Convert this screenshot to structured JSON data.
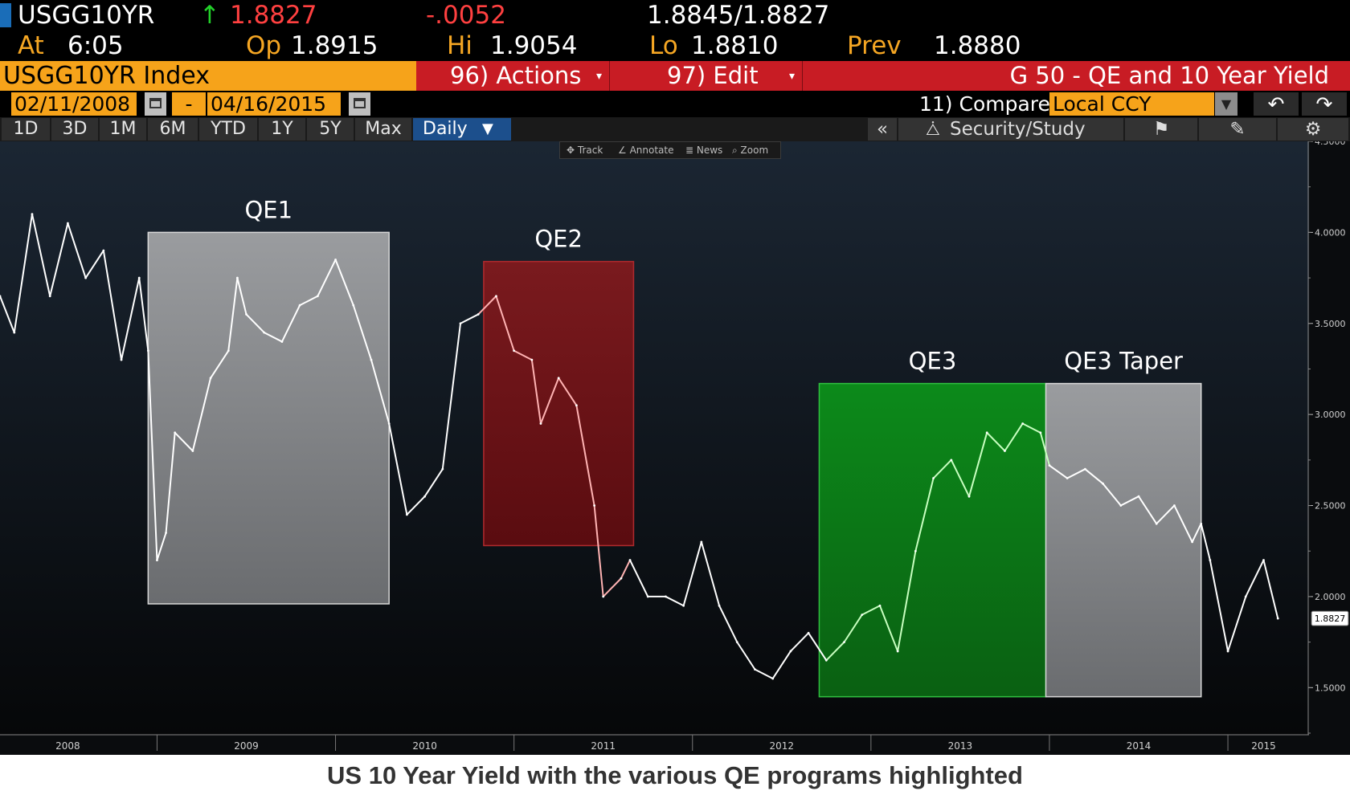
{
  "quote": {
    "ticker": "USGG10YR",
    "last": "1.8827",
    "change": "-.0052",
    "bid_ask": "1.8845/1.8827",
    "at_label": "At",
    "time": "6:05",
    "open_label": "Op",
    "open": "1.8915",
    "high_label": "Hi",
    "high": "1.9054",
    "low_label": "Lo",
    "low": "1.8810",
    "prev_label": "Prev",
    "prev": "1.8880"
  },
  "toolbar": {
    "index": "USGG10YR Index",
    "actions": "96) Actions",
    "edit": "97) Edit",
    "title": "G 50 - QE and 10 Year Yield",
    "start_date": "02/11/2008",
    "dash": "-",
    "end_date": "04/16/2015",
    "compare": "11) Compare",
    "currency": "Local CCY",
    "periods": [
      "1D",
      "3D",
      "1M",
      "6M",
      "YTD",
      "1Y",
      "5Y",
      "Max"
    ],
    "frequency": "Daily",
    "security_study": "Security/Study",
    "chart_tools": [
      "Track",
      "Annotate",
      "News",
      "Zoom"
    ]
  },
  "colors": {
    "quote_orange": "#f5a623",
    "quote_red": "#ff4040",
    "up_green": "#22d12a",
    "bar_red": "#c81c24",
    "qe1_fill": "#a7a9ac",
    "qe2_fill": "#8b1a1c",
    "qe3_fill": "#0a8a1a",
    "taper_fill": "#a7a9ac"
  },
  "chart_data": {
    "type": "line",
    "series": [
      {
        "name": "USGG10YR",
        "x": [
          2008.12,
          2008.2,
          2008.3,
          2008.4,
          2008.5,
          2008.6,
          2008.7,
          2008.8,
          2008.9,
          2008.95,
          2009.0,
          2009.05,
          2009.1,
          2009.2,
          2009.3,
          2009.4,
          2009.45,
          2009.5,
          2009.6,
          2009.7,
          2009.8,
          2009.9,
          2010.0,
          2010.1,
          2010.2,
          2010.3,
          2010.4,
          2010.5,
          2010.6,
          2010.7,
          2010.8,
          2010.9,
          2011.0,
          2011.1,
          2011.15,
          2011.25,
          2011.35,
          2011.45,
          2011.5,
          2011.6,
          2011.65,
          2011.75,
          2011.85,
          2011.95,
          2012.05,
          2012.15,
          2012.25,
          2012.35,
          2012.45,
          2012.55,
          2012.65,
          2012.75,
          2012.85,
          2012.95,
          2013.05,
          2013.15,
          2013.25,
          2013.35,
          2013.45,
          2013.55,
          2013.65,
          2013.75,
          2013.85,
          2013.95,
          2014.0,
          2014.1,
          2014.2,
          2014.3,
          2014.4,
          2014.5,
          2014.6,
          2014.7,
          2014.8,
          2014.85,
          2014.9,
          2015.0,
          2015.1,
          2015.2,
          2015.28
        ],
        "values": [
          3.65,
          3.45,
          4.1,
          3.65,
          4.05,
          3.75,
          3.9,
          3.3,
          3.75,
          3.35,
          2.2,
          2.35,
          2.9,
          2.8,
          3.2,
          3.35,
          3.75,
          3.55,
          3.45,
          3.4,
          3.6,
          3.65,
          3.85,
          3.6,
          3.3,
          2.95,
          2.45,
          2.55,
          2.7,
          3.5,
          3.55,
          3.65,
          3.35,
          3.3,
          2.95,
          3.2,
          3.05,
          2.5,
          2.0,
          2.1,
          2.2,
          2.0,
          2.0,
          1.95,
          2.3,
          1.95,
          1.75,
          1.6,
          1.55,
          1.7,
          1.8,
          1.65,
          1.75,
          1.9,
          1.95,
          1.7,
          2.25,
          2.65,
          2.75,
          2.55,
          2.9,
          2.8,
          2.95,
          2.9,
          2.72,
          2.65,
          2.7,
          2.62,
          2.5,
          2.55,
          2.4,
          2.5,
          2.3,
          2.4,
          2.2,
          1.7,
          2.0,
          2.2,
          1.88
        ]
      }
    ],
    "highlights": [
      {
        "label": "QE1",
        "x0": 2008.95,
        "x1": 2010.3,
        "y0": 1.96,
        "y1": 4.0,
        "color": "#a7a9ac"
      },
      {
        "label": "QE2",
        "x0": 2010.83,
        "x1": 2011.67,
        "y0": 2.28,
        "y1": 3.84,
        "color": "#8b1a1c"
      },
      {
        "label": "QE3",
        "x0": 2012.71,
        "x1": 2013.98,
        "y0": 1.45,
        "y1": 3.17,
        "color": "#0a8a1a"
      },
      {
        "label": "QE3 Taper",
        "x0": 2013.98,
        "x1": 2014.85,
        "y0": 1.45,
        "y1": 3.17,
        "color": "#a7a9ac"
      }
    ],
    "x_ticks": [
      "2008",
      "2009",
      "2010",
      "2011",
      "2012",
      "2013",
      "2014",
      "2015"
    ],
    "x_tick_values": [
      2008.5,
      2009.5,
      2010.5,
      2011.5,
      2012.5,
      2013.5,
      2014.5,
      2015.2
    ],
    "year_boundaries": [
      2009.0,
      2010.0,
      2011.0,
      2012.0,
      2013.0,
      2014.0,
      2015.0
    ],
    "y_ticks": [
      "1.5000",
      "2.0000",
      "2.5000",
      "3.0000",
      "3.5000",
      "4.0000",
      "4.5000"
    ],
    "y_tick_values": [
      1.5,
      2.0,
      2.5,
      3.0,
      3.5,
      4.0,
      4.5
    ],
    "last_value_label": "1.8827",
    "xlim": [
      2008.12,
      2015.45
    ],
    "ylim": [
      1.25,
      4.5
    ],
    "title": "US 10 Year Yield with the various QE programs highlighted"
  },
  "caption": "US 10 Year Yield with the various QE programs highlighted"
}
